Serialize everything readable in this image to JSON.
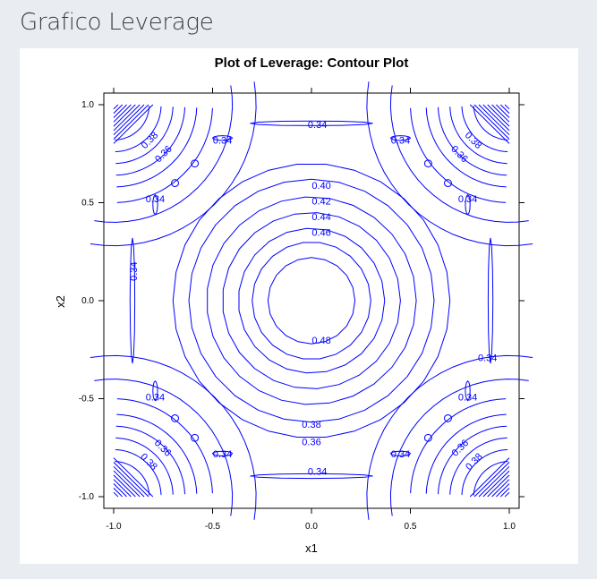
{
  "page": {
    "heading": "Grafico Leverage"
  },
  "chart_data": {
    "type": "contour",
    "title": "Plot of Leverage: Contour Plot",
    "xlabel": "x1",
    "ylabel": "x2",
    "xlim": [
      -1.0,
      1.0
    ],
    "ylim": [
      -1.0,
      1.0
    ],
    "xticks": [
      "-1.0",
      "-0.5",
      "0.0",
      "0.5",
      "1.0"
    ],
    "yticks": [
      "-1.0",
      "-0.5",
      "0.0",
      "0.5",
      "1.0"
    ],
    "grid": false,
    "line_color": "#0000ff",
    "circle_levels": [
      {
        "r": 0.7,
        "label": "0.36",
        "label_pos": [
          0.0,
          -0.72
        ]
      },
      {
        "r": 0.62,
        "label": "0.38",
        "label_pos": [
          0.0,
          -0.63
        ]
      },
      {
        "r": 0.53,
        "label": "0.40",
        "label_pos": [
          0.05,
          0.59
        ]
      },
      {
        "r": 0.45,
        "label": "0.42",
        "label_pos": [
          0.05,
          0.51
        ]
      },
      {
        "r": 0.37,
        "label": "0.44",
        "label_pos": [
          0.05,
          0.43
        ]
      },
      {
        "r": 0.3,
        "label": "0.46",
        "label_pos": [
          0.05,
          0.35
        ]
      },
      {
        "r": 0.22,
        "label": "0.48",
        "label_pos": [
          0.05,
          -0.2
        ]
      }
    ],
    "side_labels": [
      {
        "text": "0.34",
        "x": 0.03,
        "y": 0.9
      },
      {
        "text": "0.34",
        "x": 0.03,
        "y": -0.87
      },
      {
        "text": "0.34",
        "x": -0.45,
        "y": 0.82
      },
      {
        "text": "0.34",
        "x": 0.45,
        "y": 0.82
      },
      {
        "text": "0.34",
        "x": -0.45,
        "y": -0.78
      },
      {
        "text": "0.34",
        "x": 0.45,
        "y": -0.78
      },
      {
        "text": "0.34",
        "x": -0.79,
        "y": 0.52
      },
      {
        "text": "0.34",
        "x": 0.79,
        "y": 0.52
      },
      {
        "text": "0.34",
        "x": -0.79,
        "y": -0.49
      },
      {
        "text": "0.34",
        "x": 0.79,
        "y": -0.49
      },
      {
        "text": "0.34",
        "x": 0.89,
        "y": -0.29
      },
      {
        "text": "0.34",
        "x": -0.9,
        "y": 0.15,
        "rotate": -90
      }
    ],
    "corner_labels": [
      {
        "text": "0.36",
        "x": -0.75,
        "y": 0.75,
        "rotate": -45
      },
      {
        "text": "0.36",
        "x": 0.75,
        "y": 0.75,
        "rotate": 45
      },
      {
        "text": "0.36",
        "x": -0.75,
        "y": -0.75,
        "rotate": 45
      },
      {
        "text": "0.36",
        "x": 0.75,
        "y": -0.75,
        "rotate": -45
      },
      {
        "text": "0.38",
        "x": -0.82,
        "y": 0.82,
        "rotate": -45
      },
      {
        "text": "0.38",
        "x": 0.82,
        "y": 0.82,
        "rotate": 45
      },
      {
        "text": "0.38",
        "x": -0.82,
        "y": -0.82,
        "rotate": 45
      },
      {
        "text": "0.38",
        "x": 0.82,
        "y": -0.82,
        "rotate": -45
      }
    ]
  }
}
